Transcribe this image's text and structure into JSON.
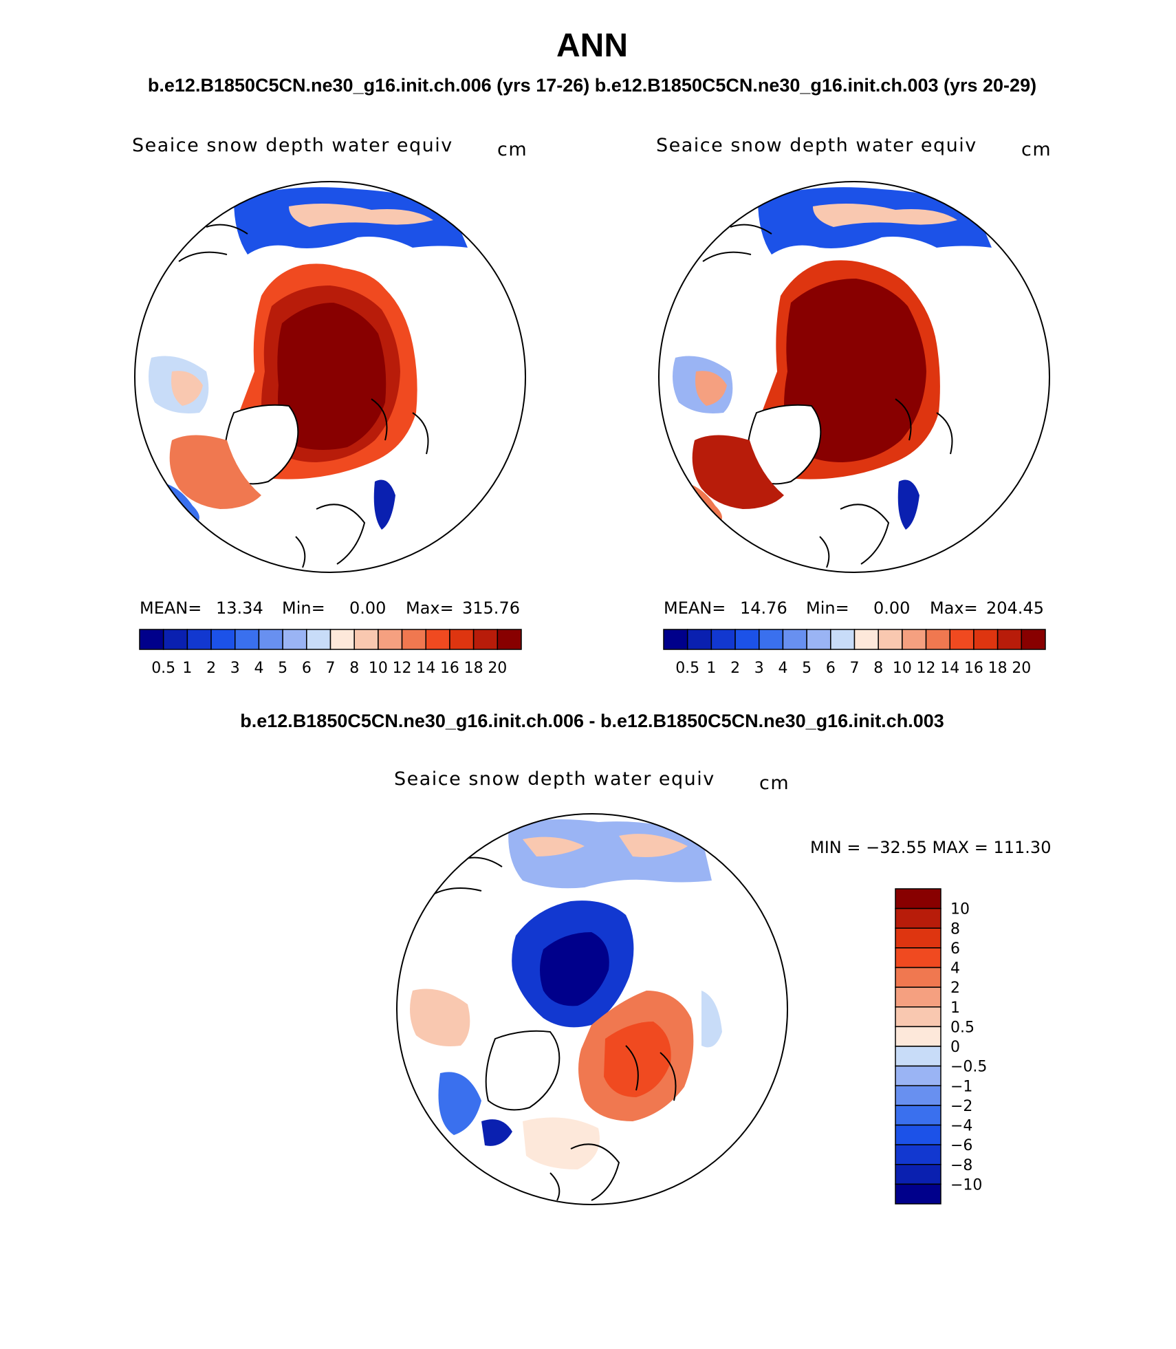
{
  "header": {
    "title": "ANN",
    "subtitle": "b.e12.B1850C5CN.ne30_g16.init.ch.006 (yrs 17-26) b.e12.B1850C5CN.ne30_g16.init.ch.003 (yrs 20-29)"
  },
  "diff_title": "b.e12.B1850C5CN.ne30_g16.init.ch.006 - b.e12.B1850C5CN.ne30_g16.init.ch.003",
  "colors": {
    "abs_scale": [
      "#00008b",
      "#0a20b0",
      "#1238d0",
      "#1c52e8",
      "#3a70ee",
      "#6890f0",
      "#9ab4f4",
      "#c8dcf8",
      "#fde8da",
      "#f9c8b0",
      "#f5a080",
      "#f07850",
      "#f04a20",
      "#de3510",
      "#b81c0a",
      "#880000"
    ],
    "diff_scale": [
      "#00008b",
      "#0a20b0",
      "#1238d0",
      "#1c52e8",
      "#3a70ee",
      "#6890f0",
      "#9ab4f4",
      "#c8dcf8",
      "#fde8da",
      "#f9c8b0",
      "#f5a080",
      "#f07850",
      "#f04a20",
      "#de3510",
      "#b81c0a",
      "#880000"
    ],
    "land": "#ffffff",
    "coast": "#000000"
  },
  "chart_data": [
    {
      "type": "polar-map",
      "panel": "left",
      "title": "Seaice snow depth water equiv",
      "units": "cm",
      "stats": {
        "mean_label": "MEAN=",
        "mean": "13.34",
        "min_label": "Min=",
        "min": "0.00",
        "max_label": "Max=",
        "max": "315.76"
      },
      "colorbar_levels": [
        "0.5",
        "1",
        "2",
        "3",
        "4",
        "5",
        "6",
        "7",
        "8",
        "10",
        "12",
        "14",
        "16",
        "18",
        "20"
      ]
    },
    {
      "type": "polar-map",
      "panel": "right",
      "title": "Seaice snow depth water equiv",
      "units": "cm",
      "stats": {
        "mean_label": "MEAN=",
        "mean": "14.76",
        "min_label": "Min=",
        "min": "0.00",
        "max_label": "Max=",
        "max": "204.45"
      },
      "colorbar_levels": [
        "0.5",
        "1",
        "2",
        "3",
        "4",
        "5",
        "6",
        "7",
        "8",
        "10",
        "12",
        "14",
        "16",
        "18",
        "20"
      ]
    },
    {
      "type": "polar-map",
      "panel": "difference",
      "title": "Seaice snow depth water equiv",
      "units": "cm",
      "minmax_label": "MIN = −32.55 MAX = 111.30",
      "colorbar_levels": [
        "10",
        "8",
        "6",
        "4",
        "2",
        "1",
        "0.5",
        "0",
        "−0.5",
        "−1",
        "−2",
        "−4",
        "−6",
        "−8",
        "−10"
      ]
    }
  ]
}
